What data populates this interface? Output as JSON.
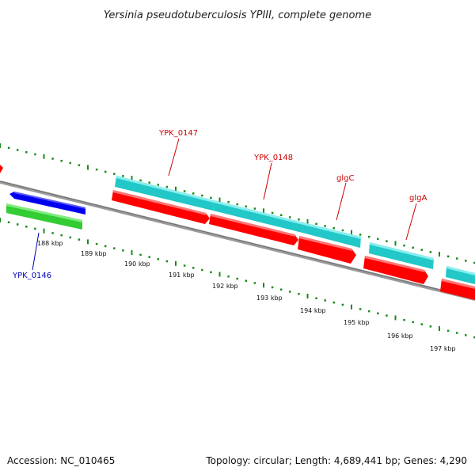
{
  "title": "Yersinia pseudotuberculosis YPIII, complete genome",
  "footer": {
    "accession": "Accession: NC_010465",
    "summary": "Topology: circular; Length: 4,689,441 bp; Genes: 4,290"
  },
  "scale": {
    "tick_labels": [
      "188 kbp",
      "189 kbp",
      "190 kbp",
      "191 kbp",
      "192 kbp",
      "193 kbp",
      "194 kbp",
      "195 kbp",
      "196 kbp",
      "197 kbp"
    ]
  },
  "gene_labels": {
    "ypk_0147": "YPK_0147",
    "ypk_0148": "YPK_0148",
    "glgc": "glgC",
    "glga": "glgA",
    "ypk_0146": "YPK_0146"
  },
  "colors": {
    "backbone": "#888888",
    "ticks": "#1a8a1a",
    "cds": "#ff0000",
    "gene": "#22c8c8",
    "minus_cds": "#0000ee",
    "minus_gene": "#33cc33",
    "label_plus": "#cc0000",
    "label_minus": "#0000bb"
  }
}
